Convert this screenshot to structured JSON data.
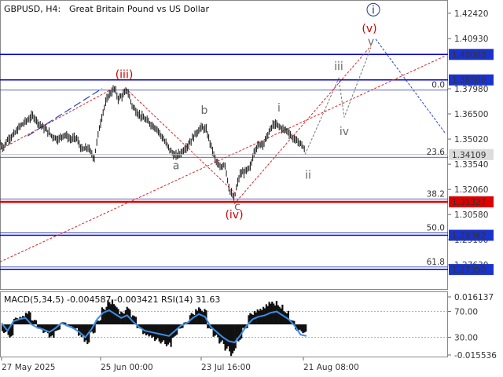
{
  "header": {
    "symbol": "GBPUSD, H4:",
    "description": "Great Britain Pound vs US Dollar"
  },
  "indicator": {
    "title": "MACD(5,34,5) -0.004587 -0.003421 RSI(14) 31.63",
    "scale_labels": [
      "0.016137",
      "70.00",
      "30.00",
      "-0.015536"
    ]
  },
  "chart_data": {
    "type": "line",
    "price_axis": {
      "ylim": [
        1.262,
        1.432
      ],
      "ticks": [
        1.4242,
        1.4093,
        1.3798,
        1.365,
        1.3502,
        1.3354,
        1.3206,
        1.3058,
        1.291,
        1.2763
      ]
    },
    "time_axis": {
      "labels": [
        "27 May 2025",
        "25 Jun 00:00",
        "23 Jul 16:00",
        "21 Aug 08:00"
      ]
    },
    "price_path": [
      [
        0,
        1.348
      ],
      [
        4,
        1.345
      ],
      [
        10,
        1.35
      ],
      [
        18,
        1.353
      ],
      [
        26,
        1.358
      ],
      [
        34,
        1.361
      ],
      [
        42,
        1.364
      ],
      [
        50,
        1.359
      ],
      [
        58,
        1.356
      ],
      [
        66,
        1.352
      ],
      [
        74,
        1.35
      ],
      [
        82,
        1.353
      ],
      [
        90,
        1.35
      ],
      [
        97,
        1.351
      ],
      [
        104,
        1.344
      ],
      [
        112,
        1.345
      ],
      [
        120,
        1.339
      ],
      [
        126,
        1.356
      ],
      [
        132,
        1.368
      ],
      [
        138,
        1.376
      ],
      [
        146,
        1.38
      ],
      [
        150,
        1.374
      ],
      [
        156,
        1.376
      ],
      [
        162,
        1.379
      ],
      [
        168,
        1.37
      ],
      [
        176,
        1.365
      ],
      [
        184,
        1.362
      ],
      [
        192,
        1.359
      ],
      [
        200,
        1.356
      ],
      [
        208,
        1.35
      ],
      [
        216,
        1.344
      ],
      [
        223,
        1.34
      ],
      [
        230,
        1.342
      ],
      [
        238,
        1.346
      ],
      [
        244,
        1.35
      ],
      [
        250,
        1.354
      ],
      [
        256,
        1.357
      ],
      [
        262,
        1.356
      ],
      [
        268,
        1.347
      ],
      [
        274,
        1.338
      ],
      [
        280,
        1.333
      ],
      [
        286,
        1.336
      ],
      [
        292,
        1.32
      ],
      [
        298,
        1.315
      ],
      [
        302,
        1.324
      ],
      [
        306,
        1.33
      ],
      [
        312,
        1.331
      ],
      [
        318,
        1.333
      ],
      [
        324,
        1.344
      ],
      [
        330,
        1.347
      ],
      [
        336,
        1.348
      ],
      [
        342,
        1.354
      ],
      [
        348,
        1.359
      ],
      [
        354,
        1.358
      ],
      [
        360,
        1.356
      ],
      [
        366,
        1.355
      ],
      [
        372,
        1.351
      ],
      [
        378,
        1.349
      ],
      [
        384,
        1.347
      ],
      [
        388,
        1.343
      ]
    ],
    "levels": [
      {
        "price": 1.4,
        "label": "1.40000",
        "color": "#0000cc",
        "width": 1.5
      },
      {
        "price": 1.385,
        "label": "1.38500",
        "color": "#0000cc",
        "width": 1.5
      },
      {
        "price": 1.31327,
        "label": "1.31327",
        "color": "#dd0000",
        "width": 2.5
      },
      {
        "price": 1.29362,
        "label": "1.29362",
        "color": "#0000cc",
        "width": 1.5
      },
      {
        "price": 1.2735,
        "label": "1.27350",
        "color": "#0000cc",
        "width": 1.5
      }
    ],
    "current_price": {
      "price": 1.34109,
      "label": "1.34109"
    },
    "fibonacci": [
      {
        "level": "0.0",
        "price": 1.379
      },
      {
        "level": "23.6",
        "price": 1.3395
      },
      {
        "level": "38.2",
        "price": 1.315
      },
      {
        "level": "50.0",
        "price": 1.295
      },
      {
        "level": "61.8",
        "price": 1.275
      }
    ],
    "wave_labels": [
      {
        "text": "(iii)",
        "x": 158,
        "price": 1.386,
        "color": "#cc0000"
      },
      {
        "text": "b",
        "x": 260,
        "price": 1.365,
        "color": "#666666"
      },
      {
        "text": "a",
        "x": 224,
        "price": 1.3325,
        "color": "#666666"
      },
      {
        "text": "c",
        "x": 302,
        "price": 1.3085,
        "color": "#666666"
      },
      {
        "text": "(iv)",
        "x": 298,
        "price": 1.3035,
        "color": "#cc0000"
      },
      {
        "text": "i",
        "x": 355,
        "price": 1.3665,
        "color": "#666666"
      },
      {
        "text": "ii",
        "x": 392,
        "price": 1.327,
        "color": "#666666"
      },
      {
        "text": "iii",
        "x": 431,
        "price": 1.391,
        "color": "#666666"
      },
      {
        "text": "iv",
        "x": 438,
        "price": 1.3525,
        "color": "#666666"
      },
      {
        "text": "v",
        "x": 472,
        "price": 1.4055,
        "color": "#666666"
      },
      {
        "text": "(v)",
        "x": 470,
        "price": 1.413,
        "color": "#cc0000"
      },
      {
        "text": "i",
        "x": 475,
        "price": 1.424,
        "color": "#1a3aa0"
      }
    ],
    "projections": {
      "gray_path": [
        [
          388,
          1.341
        ],
        [
          431,
          1.386
        ],
        [
          438,
          1.363
        ],
        [
          472,
          1.404
        ]
      ],
      "blue_down": [
        [
          478,
          1.409
        ],
        [
          566,
          1.354
        ]
      ],
      "red_channel": [
        [
          298,
          1.312
        ],
        [
          472,
          1.405
        ]
      ]
    },
    "trend_lines": {
      "red_lower": [
        [
          0,
          1.278
        ],
        [
          566,
          1.399
        ]
      ],
      "red_upper": [
        [
          0,
          1.344
        ],
        [
          140,
          1.379
        ]
      ],
      "blue_dash": [
        [
          35,
          1.352
        ],
        [
          130,
          1.38
        ]
      ],
      "red_down": [
        [
          160,
          1.38
        ],
        [
          300,
          1.318
        ]
      ]
    },
    "macd": {
      "ylim": [
        -0.016,
        0.016
      ],
      "histogram": [
        -0.004,
        -0.006,
        0.003,
        0.004,
        0.006,
        0.002,
        -0.002,
        -0.004,
        -0.006,
        -0.003,
        0.001,
        -0.001,
        -0.002,
        -0.006,
        -0.009,
        -0.004,
        0.002,
        0.008,
        0.011,
        0.009,
        0.006,
        0.008,
        0.004,
        -0.002,
        -0.005,
        -0.006,
        -0.008,
        -0.009,
        -0.01,
        -0.006,
        -0.002,
        0.001,
        0.005,
        0.008,
        0.007,
        -0.002,
        -0.006,
        -0.009,
        -0.012,
        -0.014,
        -0.008,
        -0.002,
        0.005,
        0.007,
        0.008,
        0.01,
        0.011,
        0.009,
        0.006,
        0.002,
        -0.003,
        -0.004
      ],
      "rsi": [
        52,
        40,
        55,
        58,
        60,
        50,
        45,
        42,
        38,
        44,
        52,
        48,
        44,
        38,
        30,
        42,
        58,
        68,
        72,
        66,
        60,
        64,
        54,
        46,
        40,
        38,
        36,
        34,
        32,
        40,
        48,
        52,
        60,
        66,
        62,
        46,
        38,
        30,
        24,
        22,
        34,
        48,
        58,
        62,
        64,
        68,
        70,
        64,
        58,
        48,
        34,
        32
      ]
    }
  }
}
